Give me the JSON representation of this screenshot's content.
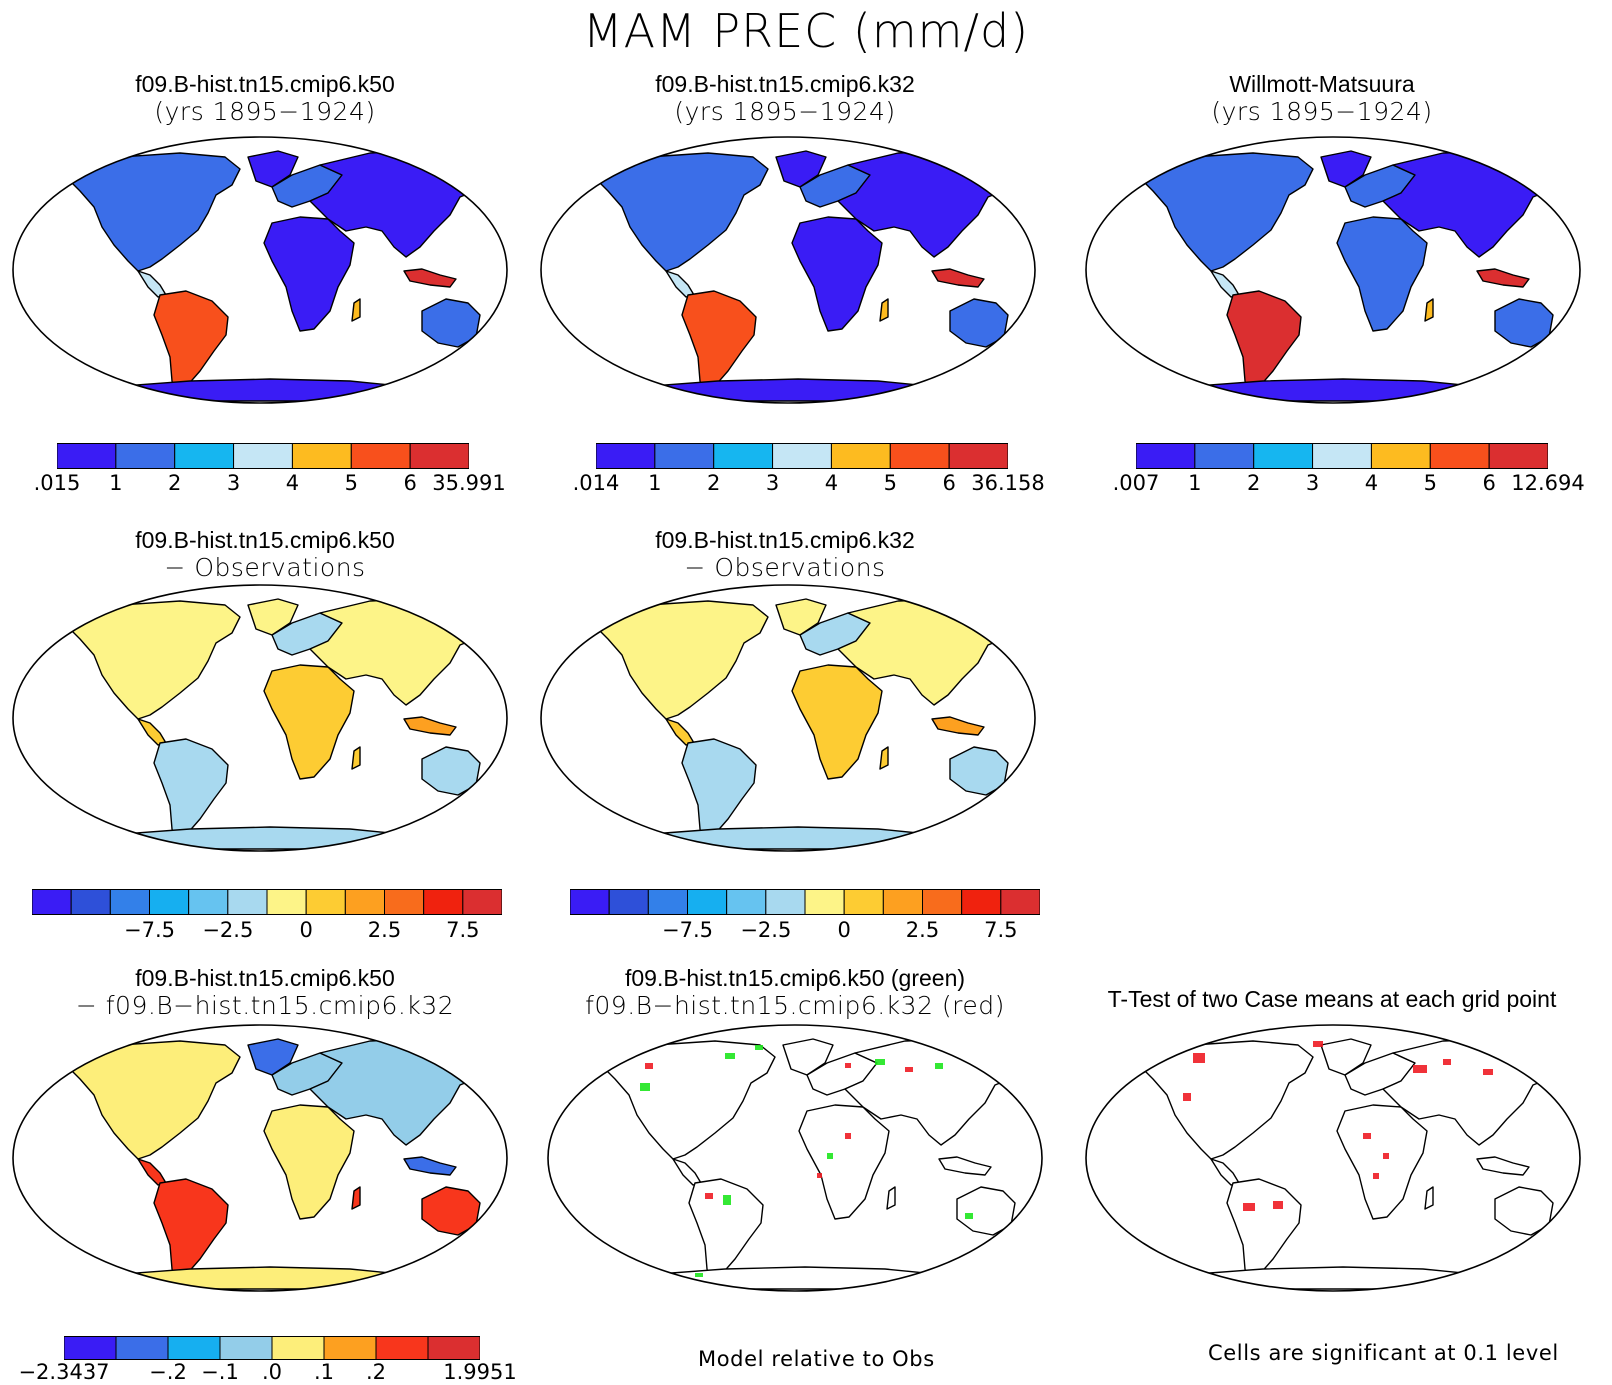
{
  "title": "MAM PREC (mm/d)",
  "colors": {
    "precip": [
      "#3a1cf5",
      "#3b6ee8",
      "#16b6f0",
      "#c5e6f5",
      "#fdbb20",
      "#f8501c",
      "#db2f30"
    ],
    "diff": [
      "#3a1cf5",
      "#2e50d9",
      "#3380e9",
      "#16aff0",
      "#66c3f0",
      "#a8d9ef",
      "#fdf488",
      "#fdcc33",
      "#fda020",
      "#f86c1c",
      "#f0220e",
      "#db2f30"
    ],
    "casediff": [
      "#3a1cf5",
      "#3b6ee8",
      "#16aff0",
      "#93cde9",
      "#fdee7a",
      "#fda020",
      "#f8361c",
      "#db2f30"
    ],
    "land_outline": "#000000",
    "sig_green": "#1ee61e",
    "sig_red": "#ee1c24"
  },
  "panels": {
    "k50": {
      "line1": "f09.B-hist.tn15.cmip6.k50",
      "line2": "(yrs 1895−1924)",
      "cbar_labels": [
        ".015",
        "1",
        "2",
        "3",
        "4",
        "5",
        "6",
        "35.991"
      ]
    },
    "k32": {
      "line1": "f09.B-hist.tn15.cmip6.k32",
      "line2": "(yrs 1895−1924)",
      "cbar_labels": [
        ".014",
        "1",
        "2",
        "3",
        "4",
        "5",
        "6",
        "36.158"
      ]
    },
    "obs": {
      "line1": "Willmott-Matsuura",
      "line2": "(yrs 1895−1924)",
      "cbar_labels": [
        ".007",
        "1",
        "2",
        "3",
        "4",
        "5",
        "6",
        "12.694"
      ]
    },
    "k50_obs": {
      "line1": "f09.B-hist.tn15.cmip6.k50",
      "line2": "− Observations",
      "cbar_labels": [
        "−7.5",
        "−2.5",
        "0",
        "2.5",
        "7.5"
      ]
    },
    "k32_obs": {
      "line1": "f09.B-hist.tn15.cmip6.k32",
      "line2": "− Observations",
      "cbar_labels": [
        "−7.5",
        "−2.5",
        "0",
        "2.5",
        "7.5"
      ]
    },
    "k50_k32": {
      "line1": "f09.B-hist.tn15.cmip6.k50",
      "line2": "− f09.B−hist.tn15.cmip6.k32",
      "cbar_labels": [
        "−2.3437",
        "−.2",
        "−.1",
        ".0",
        ".1",
        ".2",
        "1.9951"
      ]
    },
    "relative": {
      "line1": "f09.B-hist.tn15.cmip6.k50 (green)",
      "line2": "f09.B−hist.tn15.cmip6.k32 (red)",
      "note": "Model relative to Obs"
    },
    "ttest": {
      "line1": "T-Test of two Case means at each grid point",
      "note": "Cells are significant at 0.1 level"
    }
  }
}
